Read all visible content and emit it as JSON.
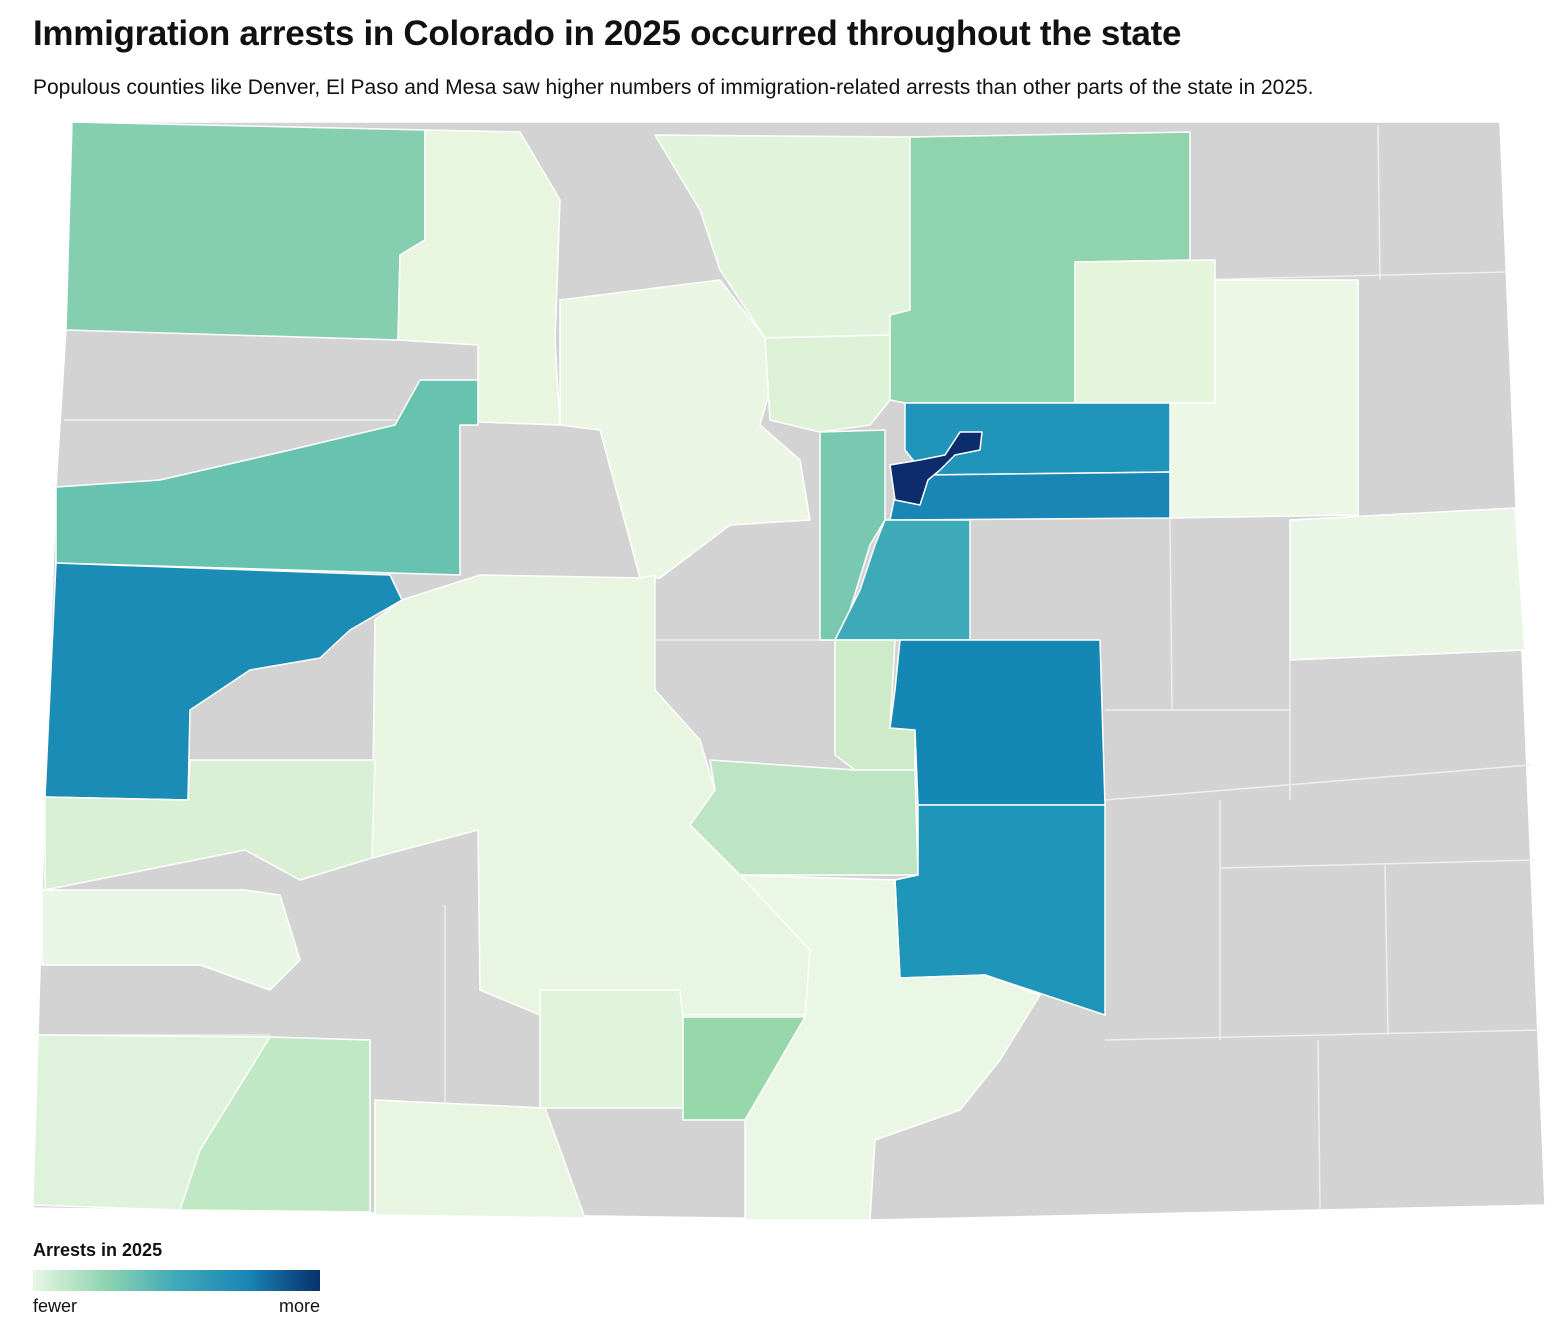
{
  "header": {
    "title": "Immigration arrests in Colorado in 2025 occurred throughout the state",
    "subtitle": "Populous counties like Denver, El Paso and Mesa saw higher numbers of immigration-related arrests than other parts of the state in 2025."
  },
  "legend": {
    "title": "Arrests in 2025",
    "low": "fewer",
    "high": "more"
  }
}
